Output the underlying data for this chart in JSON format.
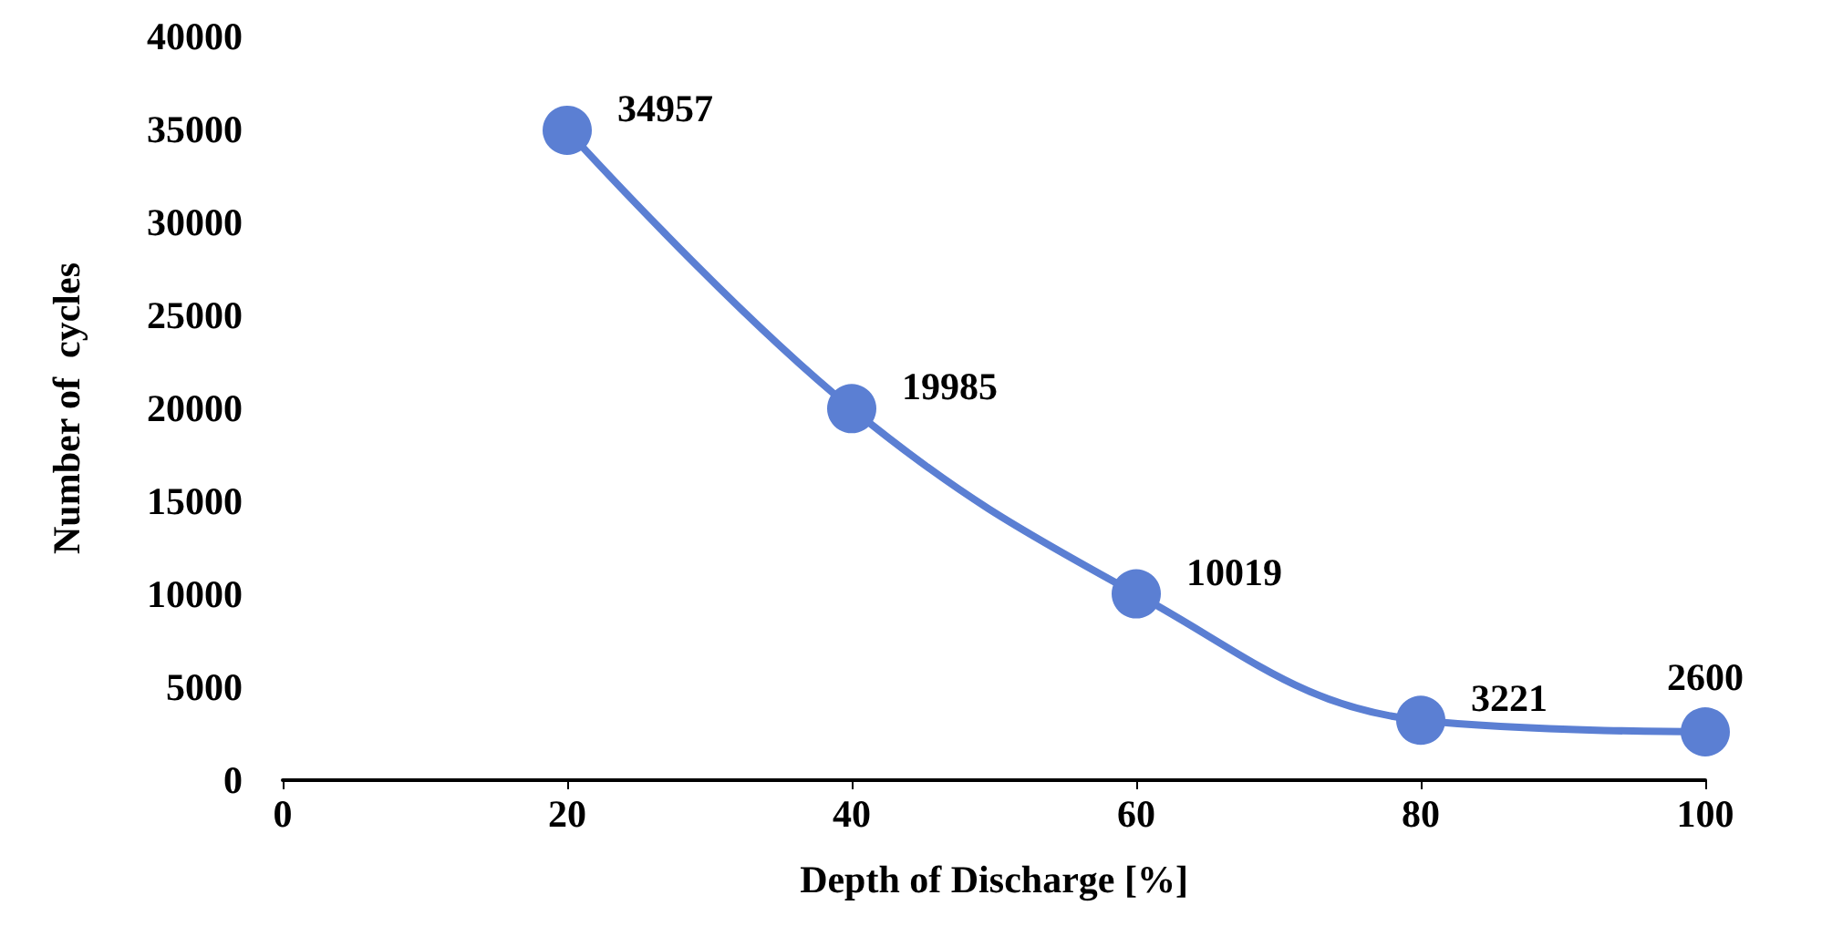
{
  "chart_data": {
    "type": "line",
    "xlabel": "Depth of Discharge [%]",
    "ylabel": "Number of  cycles",
    "x": [
      20,
      40,
      60,
      80,
      100
    ],
    "series": [
      {
        "color": "#5b7fd3",
        "values": [
          34957,
          19985,
          10019,
          3221,
          2600
        ]
      }
    ],
    "xlim": [
      0,
      100
    ],
    "xticks": [
      0,
      20,
      40,
      60,
      80,
      100
    ],
    "ylim": [
      0,
      40000
    ],
    "yticks": [
      0,
      5000,
      10000,
      15000,
      20000,
      25000,
      30000,
      35000,
      40000
    ],
    "grid": false,
    "marker": "circle",
    "line_style": "solid",
    "data_labels": true
  }
}
